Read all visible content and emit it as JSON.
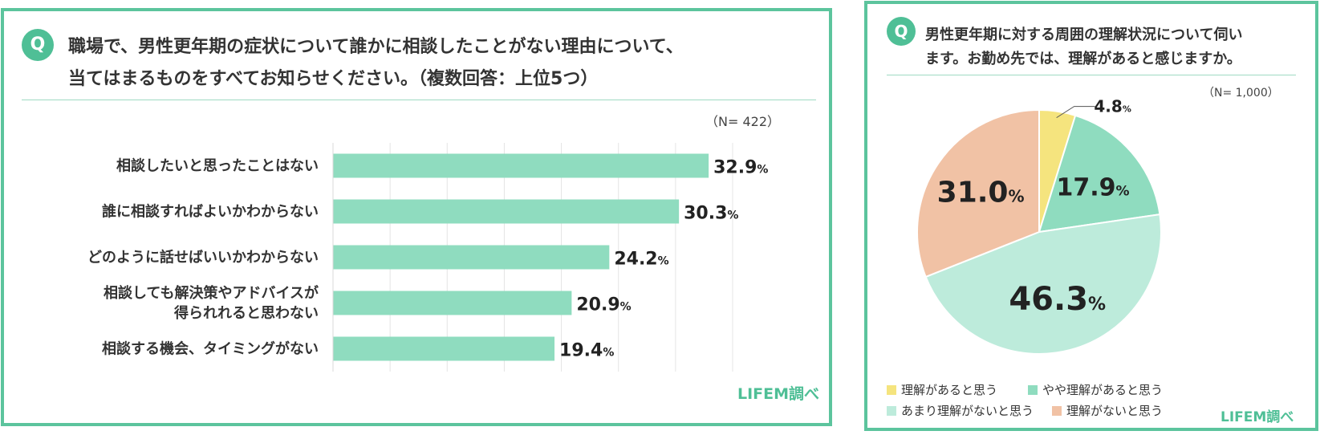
{
  "left_panel": {
    "badge": "Q",
    "question_line1": "職場で、男性更年期の症状について誰かに相談したことがない理由について、",
    "question_line2": "当てはまるものをすべてお知らせください。（複数回答：上位5つ）",
    "n_label": "（N= 422）",
    "credit": "LIFEM調べ"
  },
  "right_panel": {
    "badge": "Q",
    "question_line1": "男性更年期に対する周囲の理解状況について伺い",
    "question_line2": "ます。お勤め先では、理解があると感じますか。",
    "n_label": "（N= 1,000）",
    "credit": "LIFEM調べ"
  },
  "chart_data": [
    {
      "type": "bar",
      "orientation": "horizontal",
      "n": 422,
      "unit": "%",
      "categories": [
        [
          "相談したいと思ったことはない"
        ],
        [
          "誰に相談すればよいかわからない"
        ],
        [
          "どのように話せばいいかわからない"
        ],
        [
          "相談しても解決策やアドバイスが",
          "得られれると思わない"
        ],
        [
          "相談する機会、タイミングがない"
        ]
      ],
      "values": [
        32.9,
        30.3,
        24.2,
        20.9,
        19.4
      ],
      "value_labels": [
        "32.9",
        "30.3",
        "24.2",
        "20.9",
        "19.4"
      ],
      "xlim": [
        0,
        35
      ],
      "grid": true,
      "bar_color": "#8fdcbf"
    },
    {
      "type": "pie",
      "n": 1000,
      "unit": "%",
      "labels": [
        "理解があると思う",
        "やや理解があると思う",
        "あまり理解がないと思う",
        "理解がないと思う"
      ],
      "values": [
        4.8,
        17.9,
        46.3,
        31.0
      ],
      "value_labels": [
        "4.8",
        "17.9",
        "46.3",
        "31.0"
      ],
      "colors": [
        "#f5e47e",
        "#8fdcbf",
        "#bdebdb",
        "#f1c2a5"
      ],
      "start": "12 o'clock, clockwise"
    }
  ]
}
